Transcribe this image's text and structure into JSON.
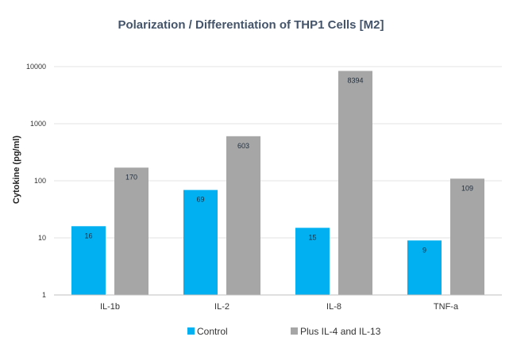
{
  "chart_data": {
    "type": "bar",
    "title": "Polarization / Differentiation of THP1 Cells [M2]",
    "xlabel": "",
    "ylabel": "Cytokine  (pg/ml)",
    "yscale": "log",
    "ylim": [
      1,
      10000
    ],
    "yticks": [
      "1",
      "10",
      "100",
      "1000",
      "10000"
    ],
    "grid": true,
    "legend_position": "bottom",
    "categories": [
      "IL-1b",
      "IL-2",
      "IL-8",
      "TNF-a"
    ],
    "series": [
      {
        "name": "Control",
        "color": "#00b0f0",
        "values": [
          16,
          69,
          15,
          9
        ]
      },
      {
        "name": "Plus IL-4 and IL-13",
        "color": "#a6a6a6",
        "values": [
          170,
          603,
          8394,
          109
        ]
      }
    ]
  }
}
